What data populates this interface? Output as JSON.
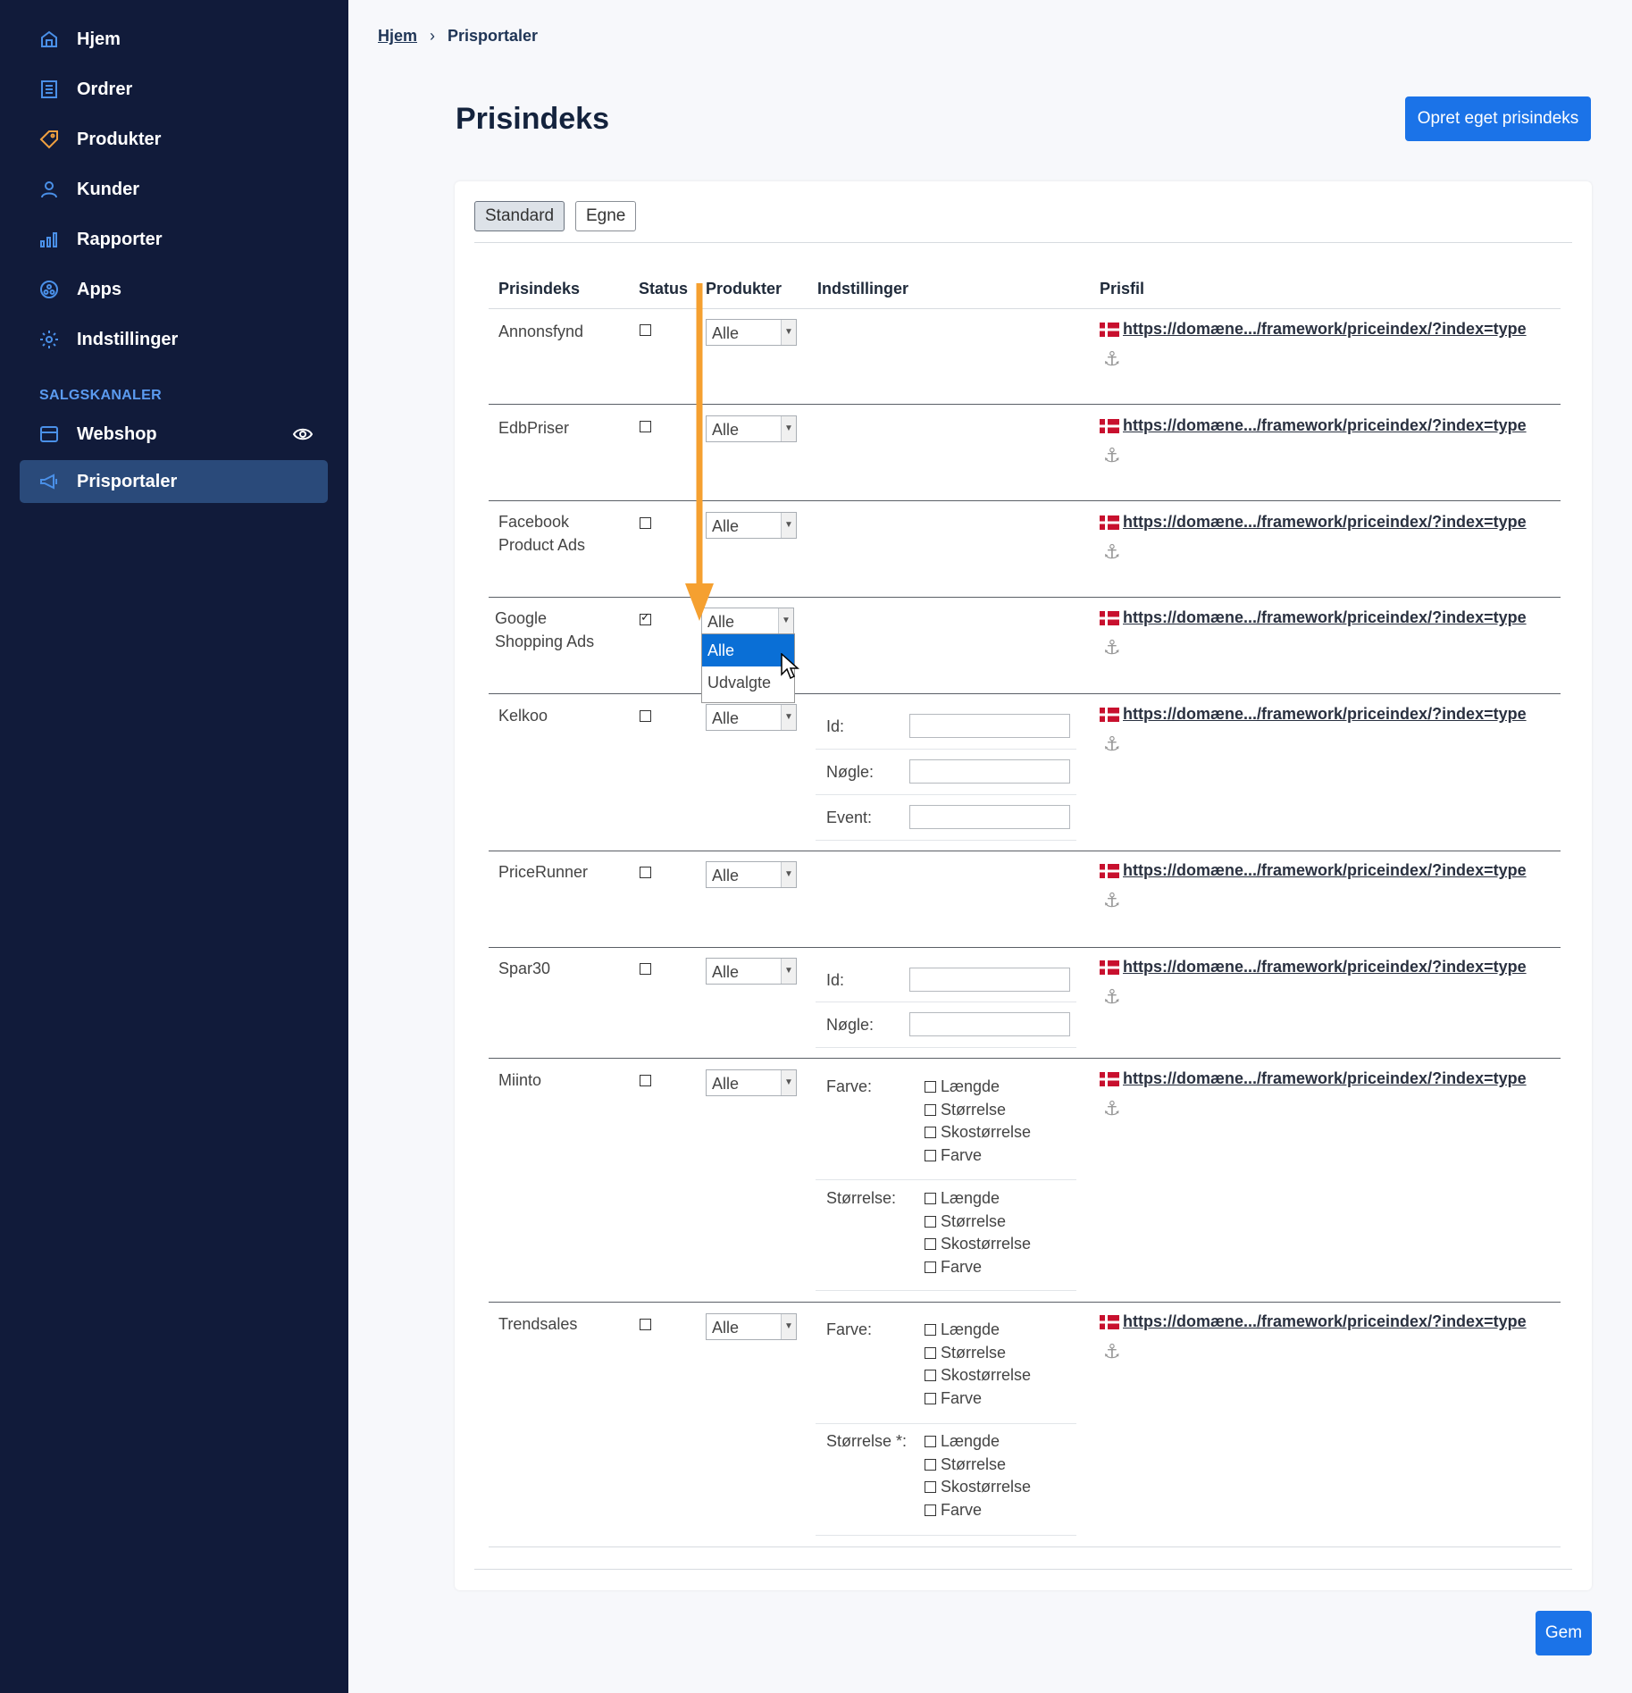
{
  "sidebar": {
    "items": [
      {
        "label": "Hjem",
        "icon": "home-icon"
      },
      {
        "label": "Ordrer",
        "icon": "orders-icon"
      },
      {
        "label": "Produkter",
        "icon": "tag-icon"
      },
      {
        "label": "Kunder",
        "icon": "user-icon"
      },
      {
        "label": "Rapporter",
        "icon": "chart-icon"
      },
      {
        "label": "Apps",
        "icon": "apps-icon"
      },
      {
        "label": "Indstillinger",
        "icon": "gear-icon"
      }
    ],
    "section_title": "SALGSKANALER",
    "channels": [
      {
        "label": "Webshop",
        "icon": "store-icon"
      },
      {
        "label": "Prisportaler",
        "icon": "megaphone-icon"
      }
    ]
  },
  "breadcrumb": {
    "home": "Hjem",
    "separator": "›",
    "current": "Prisportaler"
  },
  "page_title": "Prisindeks",
  "create_button": "Opret eget prisindeks",
  "save_button": "Gem",
  "tabs": [
    "Standard",
    "Egne"
  ],
  "columns": [
    "Prisindeks",
    "Status",
    "Produkter",
    "Indstillinger",
    "Prisfil"
  ],
  "rows": [
    {
      "name": "Annonsfynd",
      "checked": false,
      "products": "Alle",
      "link": "https://domæne.../framework/priceindex/?index=type"
    },
    {
      "name": "EdbPriser",
      "checked": false,
      "products": "Alle",
      "link": "https://domæne.../framework/priceindex/?index=type"
    },
    {
      "name": "Facebook\nProduct Ads",
      "checked": false,
      "products": "Alle",
      "link": "https://domæne.../framework/priceindex/?index=type"
    },
    {
      "name": "Google\nShopping Ads",
      "checked": true,
      "products": "Alle",
      "link": "https://domæne.../framework/priceindex/?index=type"
    },
    {
      "name": "Kelkoo",
      "checked": false,
      "products": "Alle",
      "link": "https://domæne.../framework/priceindex/?index=type",
      "settings": [
        "Id:",
        "Nøgle:",
        "Event:"
      ]
    },
    {
      "name": "PriceRunner",
      "checked": false,
      "products": "Alle",
      "link": "https://domæne.../framework/priceindex/?index=type"
    },
    {
      "name": "Spar30",
      "checked": false,
      "products": "Alle",
      "link": "https://domæne.../framework/priceindex/?index=type",
      "settings": [
        "Id:",
        "Nøgle:"
      ]
    },
    {
      "name": "Miinto",
      "checked": false,
      "products": "Alle",
      "link": "https://domæne.../framework/priceindex/?index=type",
      "groups": [
        {
          "label": "Farve:",
          "options": [
            "Længde",
            "Størrelse",
            "Skostørrelse",
            "Farve"
          ]
        },
        {
          "label": "Størrelse:",
          "options": [
            "Længde",
            "Størrelse",
            "Skostørrelse",
            "Farve"
          ]
        }
      ]
    },
    {
      "name": "Trendsales",
      "checked": false,
      "products": "Alle",
      "link": "https://domæne.../framework/priceindex/?index=type",
      "groups": [
        {
          "label": "Farve:",
          "options": [
            "Længde",
            "Størrelse",
            "Skostørrelse",
            "Farve"
          ]
        },
        {
          "label": "Størrelse *:",
          "options": [
            "Længde",
            "Størrelse",
            "Skostørrelse",
            "Farve"
          ]
        }
      ]
    }
  ],
  "dropdown_open": {
    "options": [
      "Alle",
      "Udvalgte"
    ],
    "highlighted": "Alle"
  },
  "colors": {
    "sidebar_bg": "#111b3a",
    "accent": "#1b73e8",
    "active_nav": "#2a4a7a",
    "annotation_arrow": "#f5a030"
  }
}
